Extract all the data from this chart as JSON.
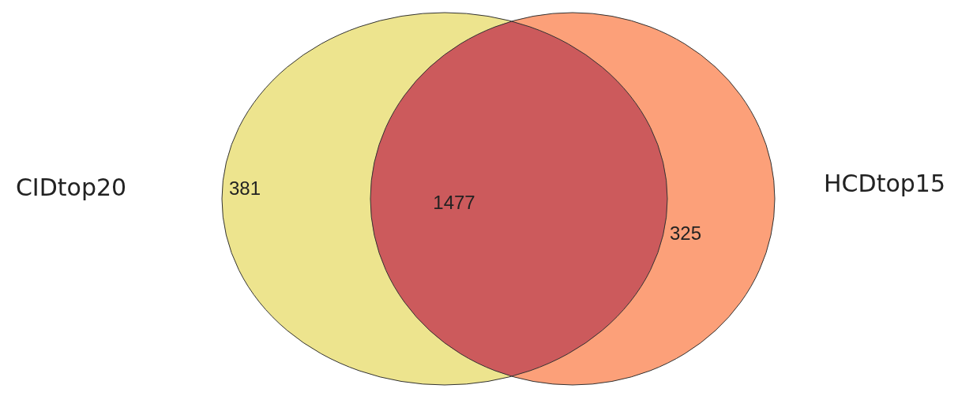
{
  "chart_data": {
    "type": "other",
    "categories": [
      "CIDtop20",
      null,
      "HCDtop15"
    ],
    "values": [
      381,
      1477,
      325
    ],
    "colors": [
      "#ede48e",
      "#cc5a5c",
      "#fca079"
    ],
    "data_labels": true
  }
}
